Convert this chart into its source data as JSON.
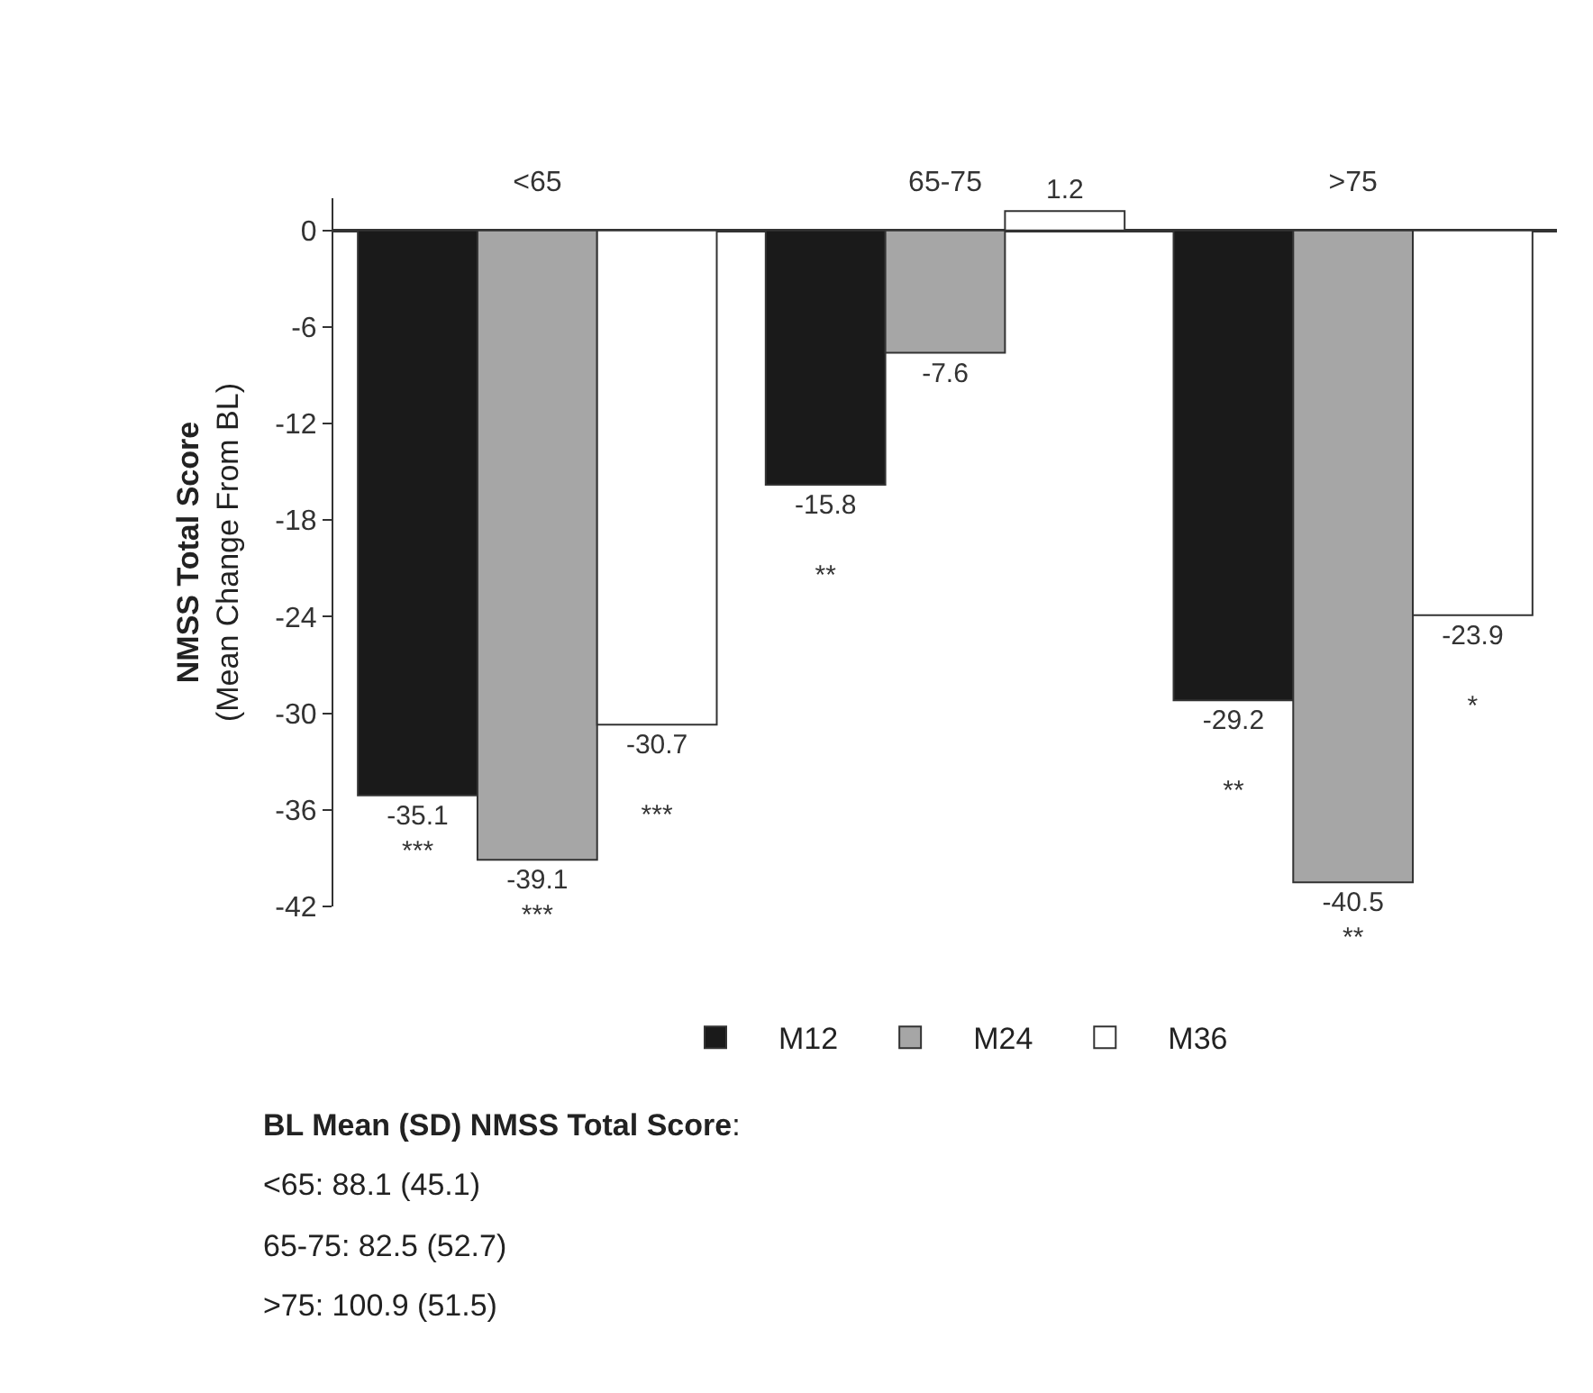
{
  "chart_data": {
    "type": "bar",
    "ylabel": "NMSS Total Score\n(Mean Change From BL)",
    "categories": [
      "<65",
      "65-75",
      ">75"
    ],
    "series": [
      {
        "name": "M12",
        "color": "#1a1a1a",
        "values": [
          -35.1,
          -15.8,
          -29.2
        ],
        "value_labels": [
          "-35.1\n***",
          "-15.8\n\n**",
          "-29.2\n\n**"
        ]
      },
      {
        "name": "M24",
        "color": "#a6a6a6",
        "values": [
          -39.1,
          -7.6,
          -40.5
        ],
        "value_labels": [
          "-39.1\n***",
          "-7.6",
          "-40.5\n**"
        ]
      },
      {
        "name": "M36",
        "color": "#ffffff",
        "values": [
          -30.7,
          1.2,
          -23.9
        ],
        "value_labels": [
          "-30.7\n\n***",
          "1.2",
          "-23.9\n\n*"
        ]
      }
    ],
    "ylim": [
      -42,
      2
    ],
    "yticks": [
      0,
      -6,
      -12,
      -18,
      -24,
      -30,
      -36,
      -42
    ],
    "legend": "bottom",
    "annotations": [
      "BL Mean (SD) NMSS Total Score:",
      "<65: 88.1 (45.1)",
      "65-75: 82.5 (52.7)",
      ">75: 100.9 (51.5)"
    ]
  }
}
